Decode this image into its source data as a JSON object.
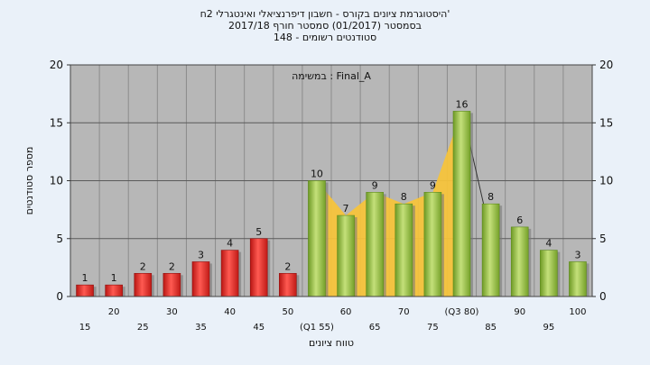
{
  "chart_data": {
    "type": "bar",
    "title": [
      "'היסטוגרמת ציונים בקורס - חשבון דיפרנציאלי ואינטגרלי 2ח",
      "בסמסטר (01/2017) סמסטר חורף 2017/18",
      "סטודנטים רשומים - 148"
    ],
    "legend_label": "Final_A : במשימה",
    "xlabel": "טווח ציונים",
    "ylabel": "מספר סטודנטים",
    "ylim": [
      0,
      20
    ],
    "yticks": [
      0,
      5,
      10,
      15,
      20
    ],
    "categories": [
      "15",
      "20",
      "25",
      "30",
      "35",
      "40",
      "45",
      "50",
      "(Q1 55)",
      "60",
      "65",
      "70",
      "75",
      "(Q3 80)",
      "85",
      "90",
      "95",
      "100"
    ],
    "values": [
      1,
      1,
      2,
      2,
      3,
      4,
      5,
      2,
      10,
      7,
      9,
      8,
      9,
      16,
      8,
      6,
      4,
      3
    ],
    "bar_colors": [
      "#e8322f",
      "#e8322f",
      "#e8322f",
      "#e8322f",
      "#e8322f",
      "#e8322f",
      "#e8322f",
      "#e8322f",
      "#8dba3c",
      "#8dba3c",
      "#8dba3c",
      "#8dba3c",
      "#8dba3c",
      "#8dba3c",
      "#8dba3c",
      "#8dba3c",
      "#8dba3c",
      "#8dba3c"
    ],
    "quartile_band": {
      "from_category": "(Q1 55)",
      "to_category": "(Q3 80)",
      "color": "#f5c33b"
    },
    "plot_background": "#b7b7b7",
    "grid": true
  }
}
